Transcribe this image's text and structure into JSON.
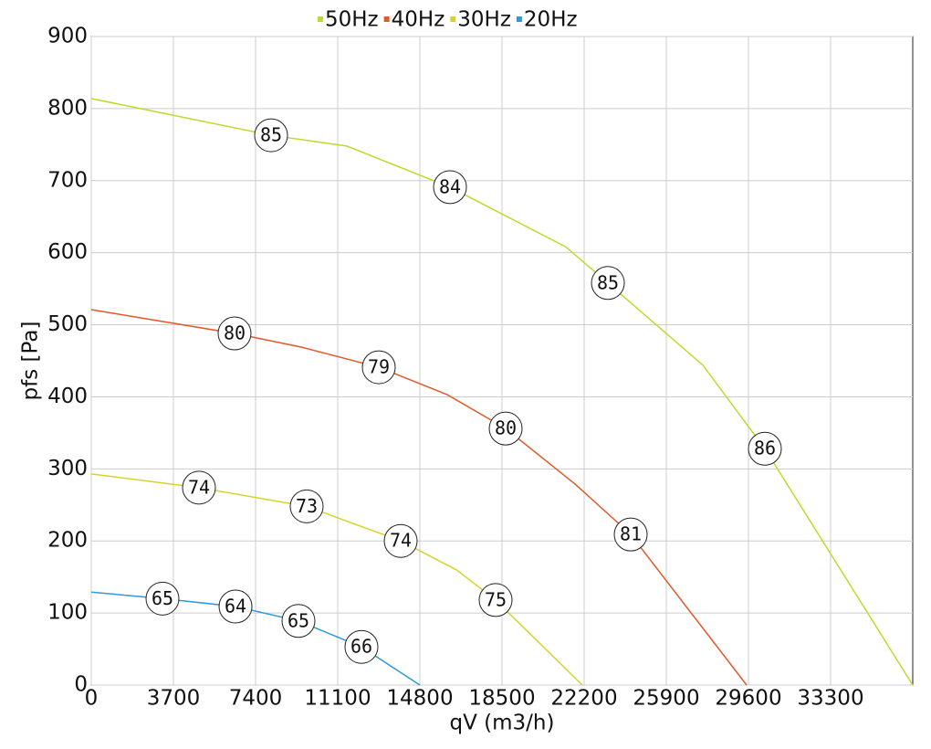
{
  "chart_data": {
    "type": "line",
    "x_label": "qV (m3/h)",
    "y_label": "pfs [Pa]",
    "xlim": [
      0,
      37000
    ],
    "ylim": [
      0,
      900
    ],
    "xticks": [
      0,
      3700,
      7400,
      11100,
      14800,
      18500,
      22200,
      25900,
      29600,
      33300
    ],
    "yticks": [
      0,
      100,
      200,
      300,
      400,
      500,
      600,
      700,
      800,
      900
    ],
    "grid": true,
    "legend": "top",
    "series": [
      {
        "name": "50Hz",
        "color": "#c3d82c",
        "x": [
          0,
          8099,
          11511,
          16157,
          21378,
          23270,
          27544,
          30340,
          37000
        ],
        "values": [
          814,
          763,
          748,
          691,
          608,
          558,
          444,
          328,
          0
        ],
        "annotations": [
          {
            "x": 8099,
            "y": 763,
            "value": 85
          },
          {
            "x": 16157,
            "y": 691,
            "value": 84
          },
          {
            "x": 23270,
            "y": 558,
            "value": 85
          },
          {
            "x": 30340,
            "y": 328,
            "value": 86
          }
        ]
      },
      {
        "name": "40Hz",
        "color": "#e05a2b",
        "x": [
          0,
          6454,
          9456,
          12950,
          16033,
          18665,
          21789,
          24297,
          29518
        ],
        "values": [
          521,
          488,
          469,
          441,
          403,
          356,
          279,
          209,
          0
        ],
        "annotations": [
          {
            "x": 6454,
            "y": 488,
            "value": 80
          },
          {
            "x": 12950,
            "y": 441,
            "value": 79
          },
          {
            "x": 18665,
            "y": 356,
            "value": 80
          },
          {
            "x": 24297,
            "y": 209,
            "value": 81
          }
        ]
      },
      {
        "name": "30Hz",
        "color": "#d6d42a",
        "x": [
          0,
          4851,
          9702,
          13937,
          16444,
          18212,
          22118
        ],
        "values": [
          293,
          274,
          248,
          200,
          160,
          118,
          0
        ],
        "annotations": [
          {
            "x": 4851,
            "y": 274,
            "value": 74
          },
          {
            "x": 9702,
            "y": 248,
            "value": 73
          },
          {
            "x": 13937,
            "y": 200,
            "value": 74
          },
          {
            "x": 18212,
            "y": 118,
            "value": 75
          }
        ]
      },
      {
        "name": "20Hz",
        "color": "#2e9ad8",
        "x": [
          0,
          3207,
          6496,
          9332,
          12169,
          14800
        ],
        "values": [
          129,
          120,
          109,
          89,
          53,
          0
        ],
        "annotations": [
          {
            "x": 3207,
            "y": 120,
            "value": 65
          },
          {
            "x": 6496,
            "y": 109,
            "value": 64
          },
          {
            "x": 9332,
            "y": 89,
            "value": 65
          },
          {
            "x": 12169,
            "y": 53,
            "value": 66
          }
        ]
      }
    ]
  }
}
